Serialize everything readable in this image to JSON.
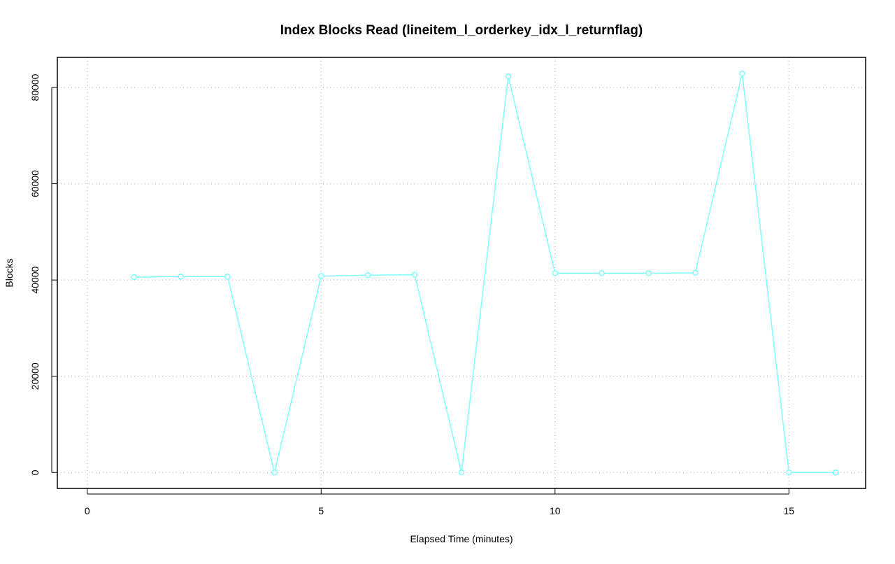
{
  "chart_data": {
    "type": "line",
    "title": "Index Blocks Read (lineitem_l_orderkey_idx_l_returnflag)",
    "x_label": "Elapsed Time (minutes)",
    "y_label": "Blocks",
    "x": [
      1,
      2,
      3,
      4,
      5,
      6,
      7,
      8,
      9,
      10,
      11,
      12,
      13,
      14,
      15,
      16
    ],
    "series": [
      {
        "name": "Blocks",
        "color": "#7fffff",
        "values": [
          40600,
          40700,
          40700,
          0,
          40800,
          41000,
          41100,
          0,
          82300,
          41400,
          41400,
          41400,
          41500,
          82900,
          0,
          0
        ]
      }
    ],
    "xlim": [
      -0.64,
      16.64
    ],
    "xticks": [
      0,
      5,
      10,
      15
    ],
    "ylim": [
      -3300,
      86250
    ],
    "yticks": [
      0,
      20000,
      40000,
      60000,
      80000
    ],
    "grid": true
  }
}
